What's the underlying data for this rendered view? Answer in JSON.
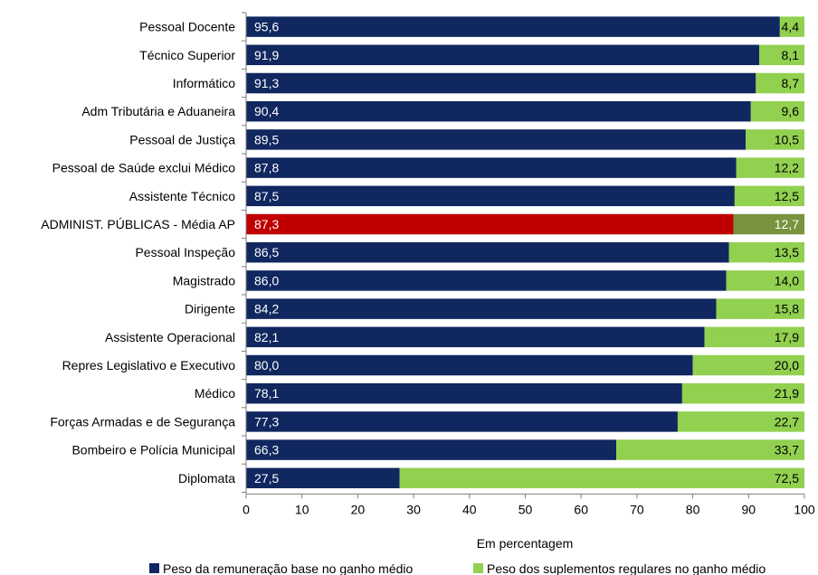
{
  "chart_data": {
    "type": "bar",
    "orientation": "horizontal",
    "stacked": true,
    "categories": [
      "Pessoal Docente",
      "Técnico Superior",
      "Informático",
      "Adm Tributária e Aduaneira",
      "Pessoal de Justiça",
      "Pessoal de Saúde exclui Médico",
      "Assistente Técnico",
      "ADMINIST. PÚBLICAS - Média AP",
      "Pessoal Inspeção",
      "Magistrado",
      "Dirigente",
      "Assistente Operacional",
      "Repres Legislativo e Executivo",
      "Médico",
      "Forças Armadas e de Segurança",
      "Bombeiro e Polícia Municipal",
      "Diplomata"
    ],
    "series": [
      {
        "name": "Peso da remuneração base no ganho médio",
        "color": "#10275f",
        "highlight_color": "#c00000",
        "values": [
          95.6,
          91.9,
          91.3,
          90.4,
          89.5,
          87.8,
          87.5,
          87.3,
          86.5,
          86.0,
          84.2,
          82.1,
          80.0,
          78.1,
          77.3,
          66.3,
          27.5
        ],
        "labels": [
          "95,6",
          "91,9",
          "91,3",
          "90,4",
          "89,5",
          "87,8",
          "87,5",
          "87,3",
          "86,5",
          "86,0",
          "84,2",
          "82,1",
          "80,0",
          "78,1",
          "77,3",
          "66,3",
          "27,5"
        ]
      },
      {
        "name": "Peso dos suplementos regulares no ganho médio",
        "color": "#92d050",
        "highlight_color": "#77933c",
        "values": [
          4.4,
          8.1,
          8.7,
          9.6,
          10.5,
          12.2,
          12.5,
          12.7,
          13.5,
          14.0,
          15.8,
          17.9,
          20.0,
          21.9,
          22.7,
          33.7,
          72.5
        ],
        "labels": [
          "4,4",
          "8,1",
          "8,7",
          "9,6",
          "10,5",
          "12,2",
          "12,5",
          "12,7",
          "13,5",
          "14,0",
          "15,8",
          "17,9",
          "20,0",
          "21,9",
          "22,7",
          "33,7",
          "72,5"
        ]
      }
    ],
    "highlight_category": "ADMINIST. PÚBLICAS - Média AP",
    "xlabel": "Em percentagem",
    "xlim": [
      0,
      100
    ],
    "xticks": [
      "0",
      "10",
      "20",
      "30",
      "40",
      "50",
      "60",
      "70",
      "80",
      "90",
      "100"
    ],
    "grid": false,
    "legend_position": "bottom"
  }
}
